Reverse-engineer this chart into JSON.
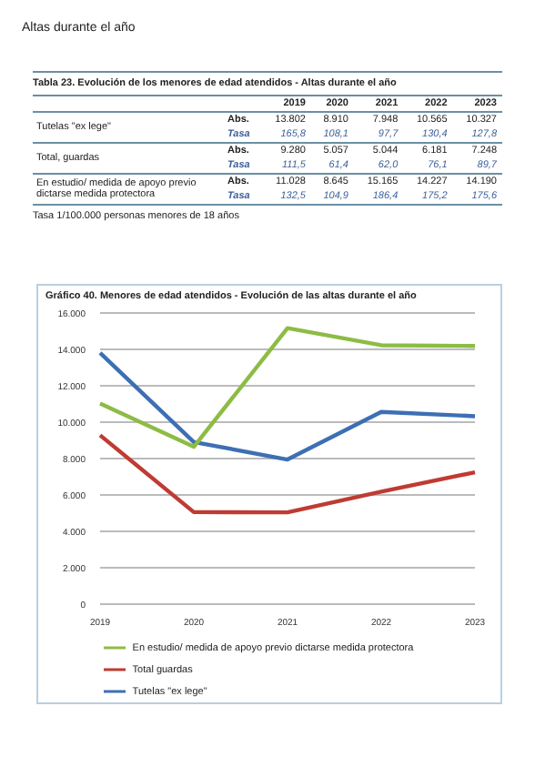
{
  "chart_data": {
    "type": "line",
    "title": "Gráfico 40. Menores de edad atendidos - Evolución de las altas durante el año",
    "categories": [
      "2019",
      "2020",
      "2021",
      "2022",
      "2023"
    ],
    "series": [
      {
        "name": "Tutelas \"ex lege\"",
        "color": "#3d6fb4",
        "values": [
          13802,
          8910,
          7948,
          10565,
          10327
        ]
      },
      {
        "name": "Total guardas",
        "color": "#bf3b33",
        "values": [
          9280,
          5057,
          5044,
          6181,
          7248
        ]
      },
      {
        "name": "En estudio/ medida de apoyo previo dictarse medida protectora",
        "color": "#8dbc45",
        "values": [
          11028,
          8645,
          15165,
          14227,
          14190
        ]
      }
    ],
    "ylim": [
      0,
      16000
    ],
    "yticks": [
      0,
      {
        "value": 2000,
        "label": "2.000"
      },
      {
        "value": 4000,
        "label": "4.000"
      },
      {
        "value": 6000,
        "label": "6.000"
      },
      {
        "value": 8000,
        "label": "8.000"
      },
      {
        "value": 10000,
        "label": "10.000"
      },
      {
        "value": 12000,
        "label": "12.000"
      },
      {
        "value": 14000,
        "label": "14.000"
      },
      {
        "value": 16000,
        "label": "16.000"
      }
    ],
    "grid": "y",
    "legend": "bottom",
    "marker": "none",
    "line_style": "solid",
    "annotations": [
      "Altas durante el año",
      "Tabla 23. Evolución de los menores de edad atendidos - Altas durante el año",
      "Abs.",
      "Tasa",
      "Tutelas \"ex lege\"",
      "Total, guardas",
      "En estudio/ medida de apoyo previo dictarse medida protectora",
      "13.802",
      "8.910",
      "7.948",
      "10.565",
      "10.327",
      "9.280",
      "5.057",
      "5.044",
      "6.181",
      "7.248",
      "11.028",
      "8.645",
      "15.165",
      "14.227",
      "14.190",
      "165,8",
      "108,1",
      "97,7",
      "130,4",
      "127,8",
      "111,5",
      "61,4",
      "62,0",
      "76,1",
      "89,7",
      "132,5",
      "104,9",
      "186,4",
      "175,2",
      "175,6",
      "Tasa 1/100.000 personas menores de 18 años"
    ]
  }
}
